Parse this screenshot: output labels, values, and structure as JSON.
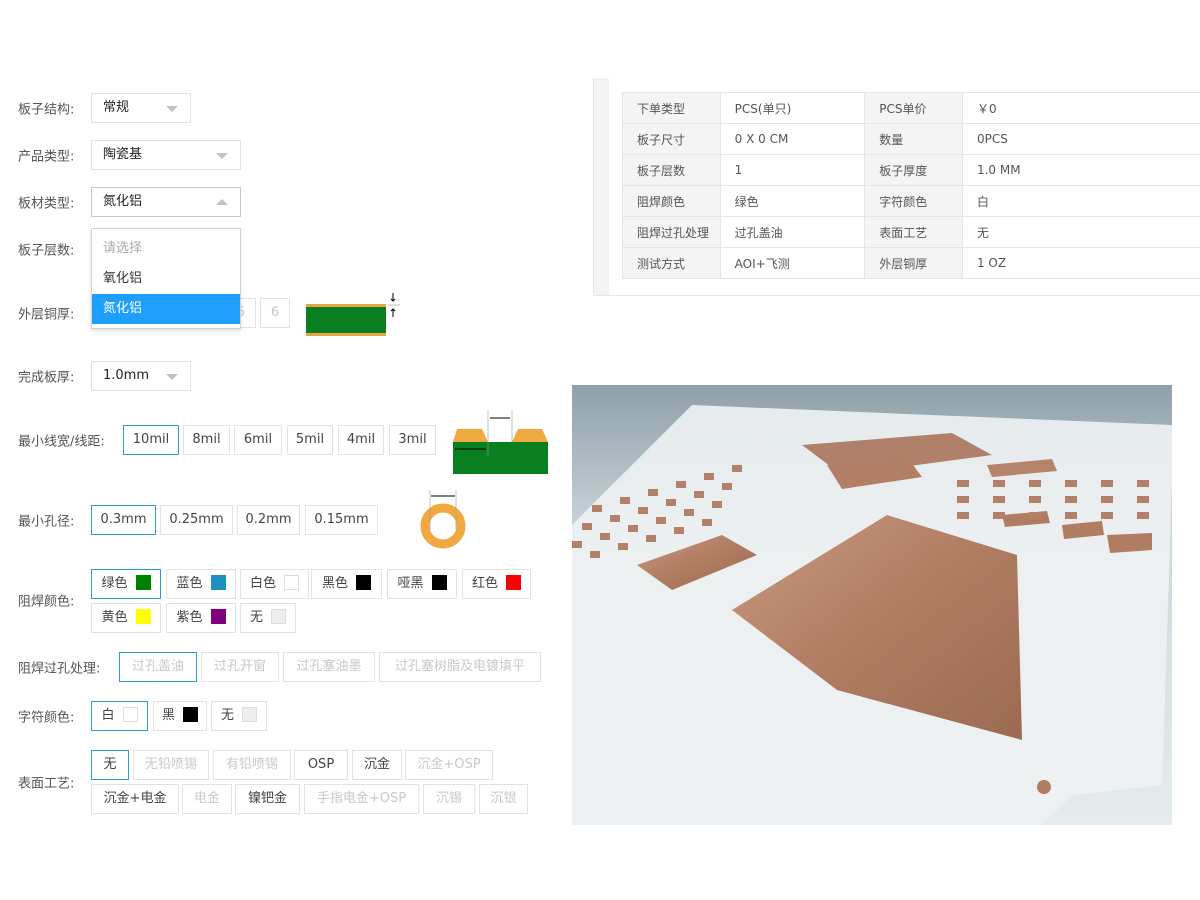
{
  "form": {
    "board_structure": {
      "label": "板子结构:",
      "value": "常规"
    },
    "product_type": {
      "label": "产品类型:",
      "value": "陶瓷基"
    },
    "material_type": {
      "label": "板材类型:",
      "value": "氮化铝",
      "options": [
        "请选择",
        "氧化铝",
        "氮化铝"
      ],
      "placeholder": "请选择"
    },
    "layers": {
      "label": "板子层数:"
    },
    "copper": {
      "label": "外层铜厚:",
      "options": [
        "5",
        "6"
      ]
    },
    "thickness": {
      "label": "完成板厚:",
      "value": "1.0mm"
    },
    "trace": {
      "label": "最小线宽/线距:",
      "options": [
        "10mil",
        "8mil",
        "6mil",
        "5mil",
        "4mil",
        "3mil"
      ],
      "selected": "10mil"
    },
    "hole": {
      "label": "最小孔径:",
      "options": [
        "0.3mm",
        "0.25mm",
        "0.2mm",
        "0.15mm"
      ],
      "selected": "0.3mm"
    },
    "mask_color": {
      "label": "阻焊颜色:",
      "options": [
        {
          "name": "绿色",
          "color": "#008000"
        },
        {
          "name": "蓝色",
          "color": "#1e90c0"
        },
        {
          "name": "白色",
          "color": "#ffffff"
        },
        {
          "name": "黑色",
          "color": "#000000"
        },
        {
          "name": "哑黑",
          "color": "#000000"
        },
        {
          "name": "红色",
          "color": "#ff0000"
        },
        {
          "name": "黄色",
          "color": "#ffff00"
        },
        {
          "name": "紫色",
          "color": "#800080"
        },
        {
          "name": "无",
          "color": "#eeeeee"
        }
      ],
      "selected": "绿色"
    },
    "via": {
      "label": "阻焊过孔处理:",
      "options": [
        "过孔盖油",
        "过孔开窗",
        "过孔塞油墨",
        "过孔塞树脂及电镀填平"
      ],
      "selected": "过孔盖油"
    },
    "silk": {
      "label": "字符颜色:",
      "options": [
        {
          "name": "白",
          "color": "#ffffff"
        },
        {
          "name": "黑",
          "color": "#000000"
        },
        {
          "name": "无",
          "color": "#eeeeee"
        }
      ],
      "selected": "白"
    },
    "surface": {
      "label": "表面工艺:",
      "options": [
        "无",
        "无铅喷锡",
        "有铅喷锡",
        "OSP",
        "沉金",
        "沉金+OSP",
        "沉金+电金",
        "电金",
        "镍钯金",
        "手指电金+OSP",
        "沉锡",
        "沉银"
      ],
      "selected": "无"
    }
  },
  "summary": [
    [
      "下单类型",
      "PCS(单只)",
      "PCS单价",
      "￥0"
    ],
    [
      "板子尺寸",
      "0 X 0 CM",
      "数量",
      "0PCS"
    ],
    [
      "板子层数",
      "1",
      "板子厚度",
      "1.0 MM"
    ],
    [
      "阻焊颜色",
      "绿色",
      "字符颜色",
      "白"
    ],
    [
      "阻焊过孔处理",
      "过孔盖油",
      "表面工艺",
      "无"
    ],
    [
      "测试方式",
      "AOI+飞测",
      "外层铜厚",
      "1 OZ"
    ]
  ],
  "colors": {
    "accent": "#2a9fc9",
    "dropdown_highlight": "#1e9fff",
    "pcb_green": "#0a7f20",
    "copper_pad": "#f0a830"
  }
}
